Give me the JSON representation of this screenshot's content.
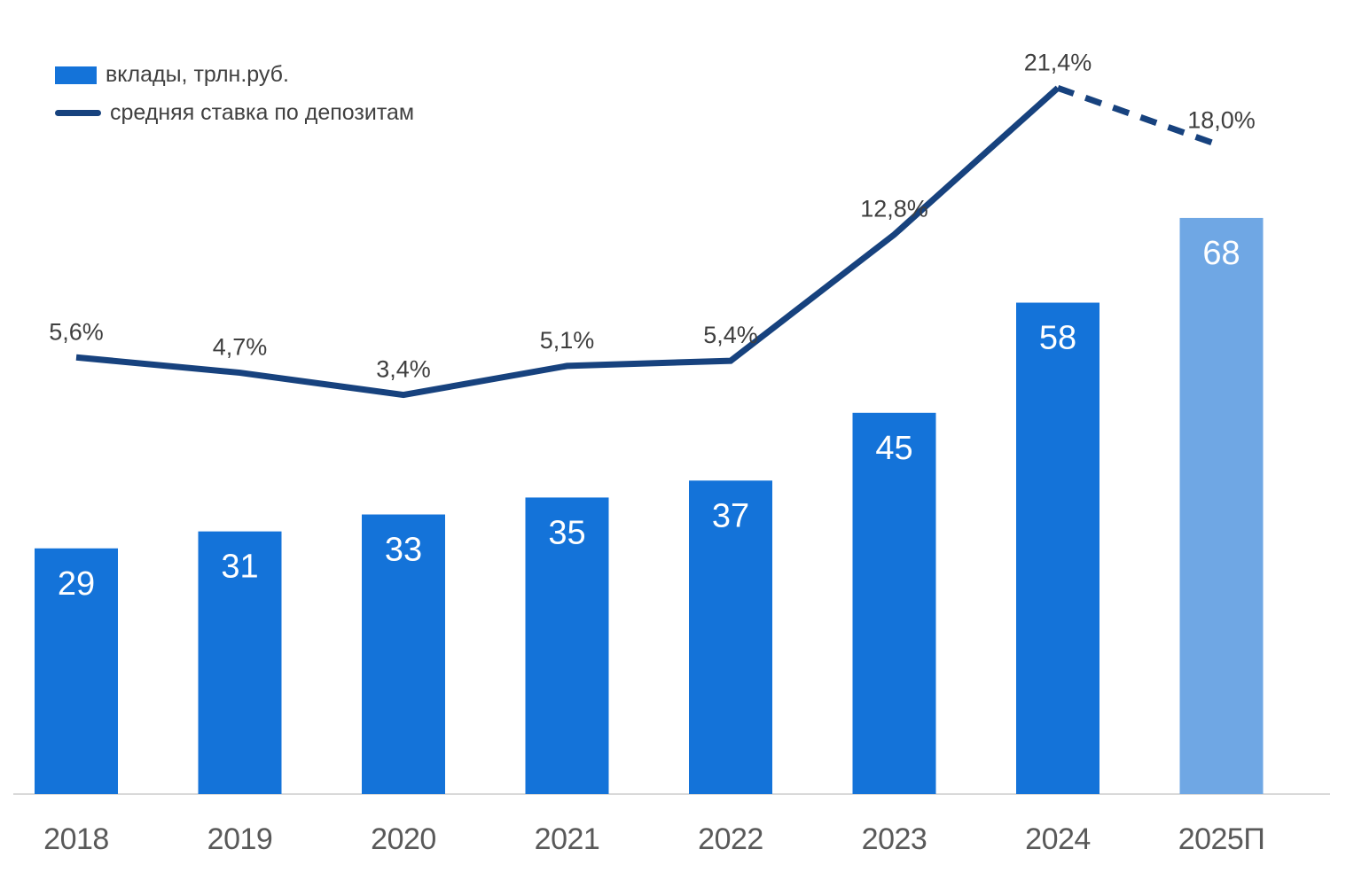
{
  "colors": {
    "bar": "#1473d9",
    "bar_forecast": "#6fa7e4",
    "line": "#17427e",
    "axis_line": "#d9d9d9",
    "bar_label": "#ffffff",
    "rate_label": "#3f3f3f",
    "axis_label": "#595959",
    "legend_text": "#404040",
    "background": "#ffffff"
  },
  "legend": {
    "items": [
      {
        "label": "вклады, трлн.руб.",
        "marker": "bar-swatch",
        "color": "#1473d9"
      },
      {
        "label": "средняя ставка по депозитам",
        "marker": "line-swatch",
        "color": "#17427e"
      }
    ]
  },
  "chart_data": {
    "type": "combo-bar-line",
    "categories": [
      "2018",
      "2019",
      "2020",
      "2021",
      "2022",
      "2023",
      "2024",
      "2025П"
    ],
    "series": [
      {
        "name": "вклады, трлн.руб.",
        "type": "bar",
        "values": [
          29,
          31,
          33,
          35,
          37,
          45,
          58,
          68
        ],
        "data_labels": [
          "29",
          "31",
          "33",
          "35",
          "37",
          "45",
          "58",
          "68"
        ],
        "label_position": "inside-top",
        "label_color": "#ffffff"
      },
      {
        "name": "средняя ставка по депозитам",
        "type": "line",
        "values": [
          5.6,
          4.7,
          3.4,
          5.1,
          5.4,
          12.8,
          21.4,
          18.0
        ],
        "data_labels": [
          "5,6%",
          "4,7%",
          "3,4%",
          "5,1%",
          "5,4%",
          "12,8%",
          "21,4%",
          "18,0%"
        ],
        "label_position": "above",
        "label_color": "#3f3f3f"
      }
    ],
    "forecast_category": "2025П",
    "forecast_rendering": {
      "bar": "lighter-fill",
      "line": "dashed-segment"
    },
    "title": "",
    "xlabel": "",
    "ylabel": "",
    "grid": false,
    "y_axis_visible": false,
    "x_axis_line": true,
    "legend_position": "top-left"
  }
}
